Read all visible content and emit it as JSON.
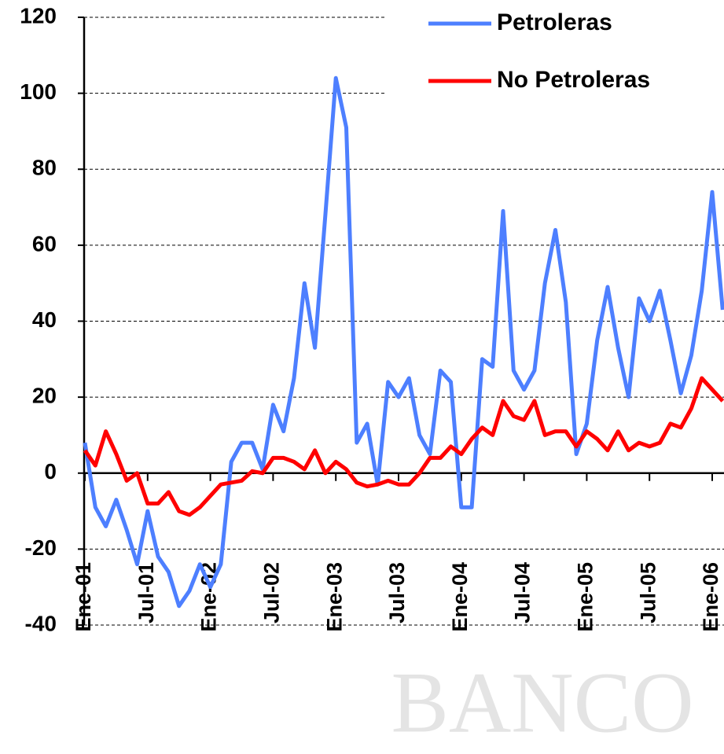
{
  "chart_data": {
    "type": "line",
    "watermark": "BANCO",
    "categories": [
      "Ene-01",
      null,
      null,
      null,
      null,
      null,
      "Jul-01",
      null,
      null,
      null,
      null,
      null,
      "Ene-02",
      null,
      null,
      null,
      null,
      null,
      "Jul-02",
      null,
      null,
      null,
      null,
      null,
      "Ene-03",
      null,
      null,
      null,
      null,
      null,
      "Jul-03",
      null,
      null,
      null,
      null,
      null,
      "Ene-04",
      null,
      null,
      null,
      null,
      null,
      "Jul-04",
      null,
      null,
      null,
      null,
      null,
      "Ene-05",
      null,
      null,
      null,
      null,
      null,
      "Jul-05",
      null,
      null,
      null,
      null,
      null,
      "Ene-06",
      null
    ],
    "series": [
      {
        "name": "Petroleras",
        "color": "#4d7fff",
        "values": [
          8,
          -9,
          -14,
          -7,
          -15,
          -24,
          -10,
          -22,
          -26,
          -35,
          -31,
          -24,
          -30,
          -24,
          3,
          8,
          8,
          1,
          18,
          11,
          25,
          50,
          33,
          68,
          104,
          91,
          8,
          13,
          -3,
          24,
          20,
          25,
          10,
          5,
          27,
          24,
          -9,
          -9,
          30,
          28,
          69,
          27,
          22,
          27,
          50,
          64,
          45,
          5,
          13,
          35,
          49,
          33,
          20,
          46,
          40,
          48,
          35,
          21,
          31,
          48,
          74,
          43
        ]
      },
      {
        "name": "No Petroleras",
        "color": "#ff0000",
        "values": [
          6,
          2,
          11,
          5,
          -2,
          0,
          -8,
          -8,
          -5,
          -10,
          -11,
          -9,
          -6,
          -3,
          -2.5,
          -2,
          0.5,
          0,
          4,
          4,
          3,
          1,
          6,
          0,
          3,
          1,
          -2.5,
          -3.5,
          -3,
          -2,
          -3,
          -3,
          0,
          4,
          4,
          7,
          5,
          9,
          12,
          10,
          19,
          15,
          14,
          19,
          10,
          11,
          11,
          7,
          11,
          9,
          6,
          11,
          6,
          8,
          7,
          8,
          13,
          12,
          17,
          25,
          22,
          19
        ]
      }
    ],
    "ylim": [
      -40,
      120
    ],
    "yticks": [
      -40,
      -20,
      0,
      20,
      40,
      60,
      80,
      100,
      120
    ],
    "grid": true,
    "legend": "top-right"
  }
}
